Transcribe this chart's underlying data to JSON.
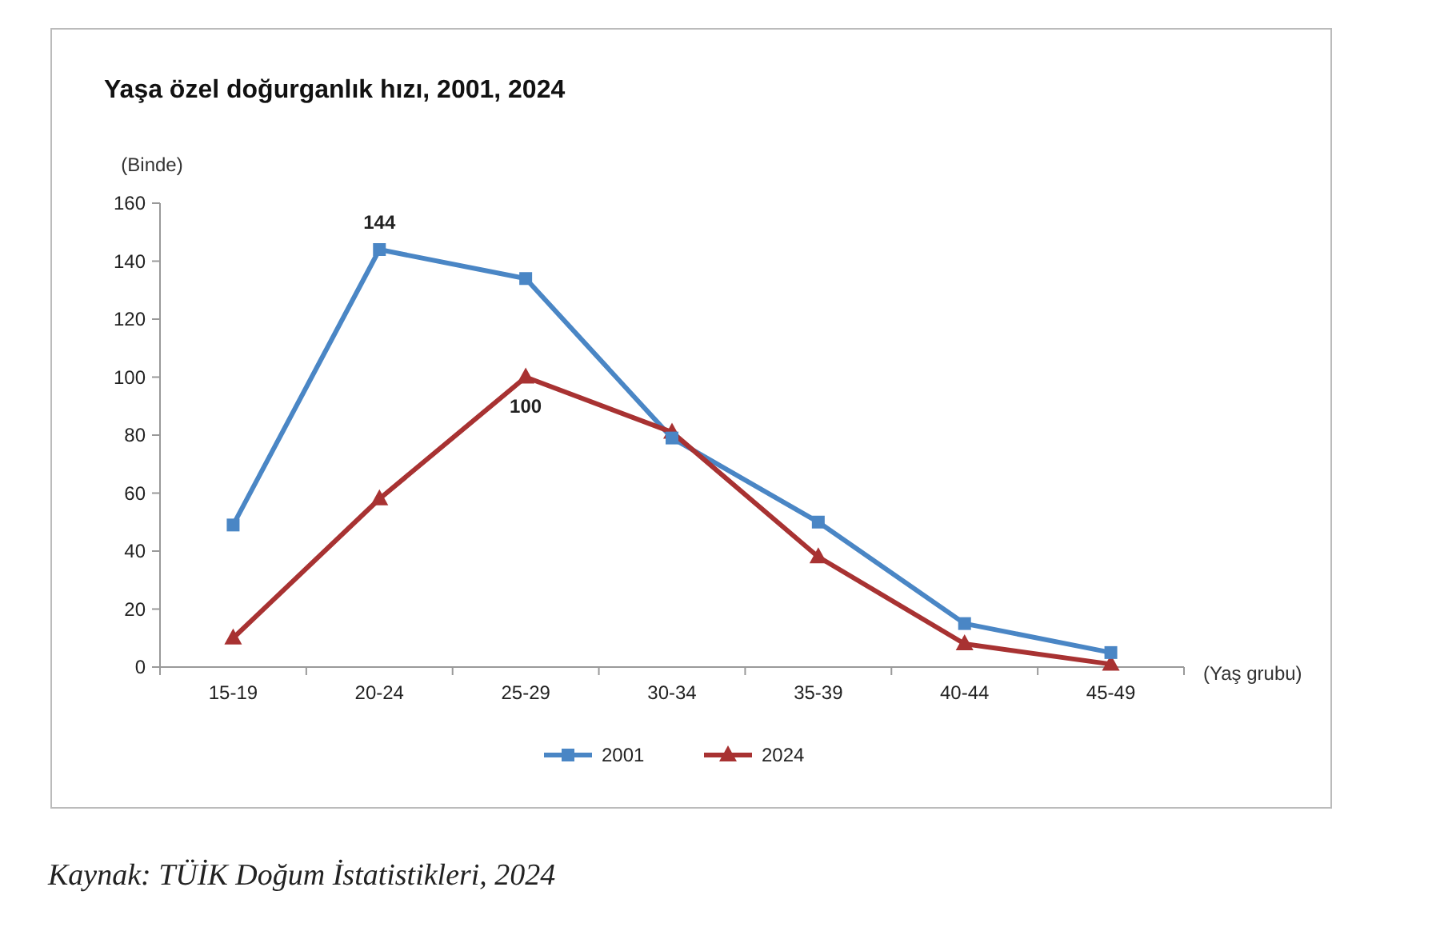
{
  "chart_data": {
    "type": "line",
    "title": "Yaşa özel doğurganlık hızı, 2001, 2024",
    "ylabel": "(Binde)",
    "xlabel": "(Yaş grubu)",
    "categories": [
      "15-19",
      "20-24",
      "25-29",
      "30-34",
      "35-39",
      "40-44",
      "45-49"
    ],
    "series": [
      {
        "name": "2001",
        "color": "#4a86c5",
        "marker": "square",
        "values": [
          49,
          144,
          134,
          79,
          50,
          15,
          5
        ],
        "value_labels": [
          null,
          "144",
          null,
          null,
          null,
          null,
          null
        ]
      },
      {
        "name": "2024",
        "color": "#a83232",
        "marker": "triangle",
        "values": [
          10,
          58,
          100,
          81,
          38,
          8,
          1
        ],
        "value_labels": [
          null,
          null,
          "100",
          null,
          null,
          null,
          null
        ]
      }
    ],
    "ylim": [
      0,
      160
    ],
    "yticks": [
      0,
      20,
      40,
      60,
      80,
      100,
      120,
      140,
      160
    ],
    "grid": false,
    "legend": "bottom",
    "annotations": [
      "Kaynak: TÜİK Doğum İstatistikleri, 2024"
    ]
  }
}
